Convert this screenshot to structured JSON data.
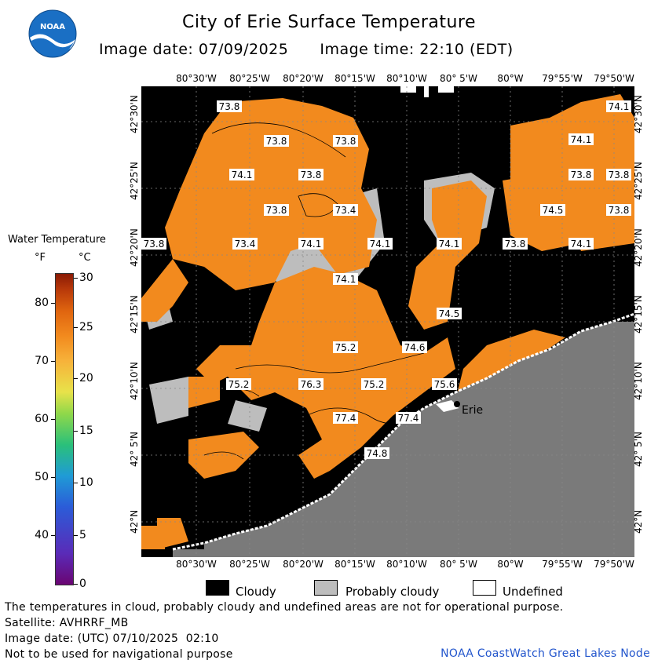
{
  "header": {
    "title": "City of Erie Surface Temperature",
    "image_date": "Image date: 07/09/2025",
    "image_time": "Image time: 22:10 (EDT)",
    "logo_text": "NOAA"
  },
  "map": {
    "top_longitudes": [
      "80°30'W",
      "80°25'W",
      "80°20'W",
      "80°15'W",
      "80°10'W",
      "80° 5'W",
      "80°W",
      "79°55'W",
      "79°50'W"
    ],
    "bottom_longitudes": [
      "80°30'W",
      "80°25'W",
      "80°20'W",
      "80°15'W",
      "80°10'W",
      "80° 5'W",
      "80°W",
      "79°55'W",
      "79°50'W"
    ],
    "left_latitudes": [
      "42°30'N",
      "42°25'N",
      "42°20'N",
      "42°15'N",
      "42°10'N",
      "42° 5'N",
      "42°N"
    ],
    "right_latitudes": [
      "42°30'N",
      "42°25'N",
      "42°20'N",
      "42°15'N",
      "42°10'N",
      "42° 5'N",
      "42°N"
    ],
    "city_label": "Erie",
    "temperature_labels": [
      "73.8",
      "73.8",
      "73.8",
      "74.1",
      "73.8",
      "73.8",
      "73.4",
      "73.8",
      "73.4",
      "74.1",
      "74.1",
      "74.1",
      "74.1",
      "73.8",
      "74.1",
      "74.5",
      "74.5",
      "73.8",
      "74.1",
      "73.8",
      "73.8",
      "74.1",
      "75.2",
      "74.6",
      "75.2",
      "76.3",
      "75.2",
      "75.6",
      "77.4",
      "77.4",
      "74.8"
    ]
  },
  "legend": {
    "title": "Water Temperature",
    "unit_f": "°F",
    "unit_c": "°C",
    "f_ticks": [
      "80",
      "70",
      "60",
      "50",
      "40"
    ],
    "c_ticks": [
      "30",
      "25",
      "20",
      "15",
      "10",
      "5",
      "0"
    ],
    "cloudy": "Cloudy",
    "probably_cloudy": "Probably cloudy",
    "undefined": "Undefined"
  },
  "footer": {
    "disclaimer": "The temperatures in cloud, probably cloudy and undefined areas are not for operational purpose.",
    "satellite": "Satellite: AVHRRF_MB",
    "utc_date": "Image date: (UTC) 07/10/2025  02:10",
    "nav_warning": "Not to be used for navigational purpose",
    "credit": "NOAA CoastWatch Great Lakes Node"
  },
  "colors": {
    "water_warm": "#f28a1e",
    "cloud": "#000000",
    "probably_cloudy": "#bdbdbd",
    "land": "#7a7a7a",
    "undefined": "#ffffff",
    "credit_blue": "#2255cc"
  }
}
